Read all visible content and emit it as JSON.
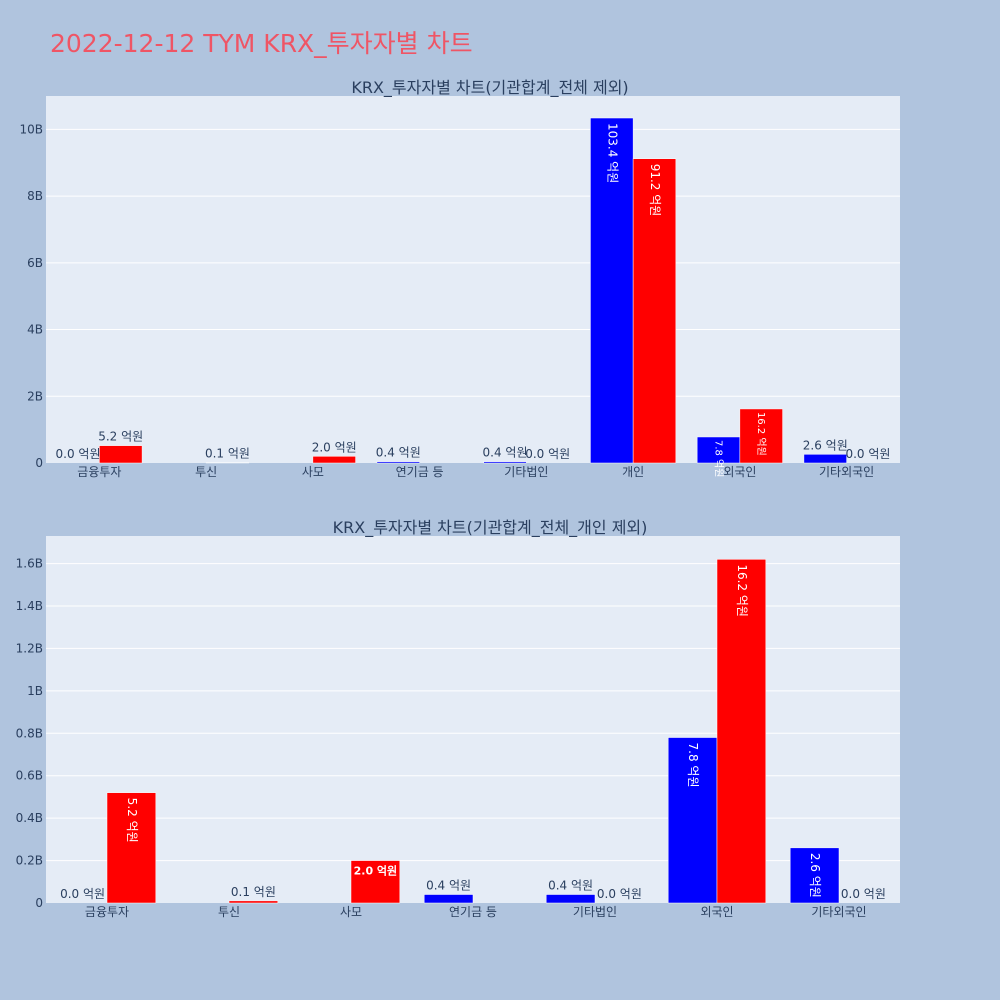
{
  "page_title": "2022-12-12 TYM KRX_투자자별 차트",
  "colors": {
    "buy": "#0000ff",
    "sell": "#ff0000",
    "title": "#ef5565",
    "background": "#b0c4de",
    "plot_bg": "#e5ecf6"
  },
  "chart_data": [
    {
      "type": "bar",
      "title": "KRX_투자자별 차트(기관합계_전체 제외)",
      "categories": [
        "금융투자",
        "투신",
        "사모",
        "연기금 등",
        "기타법인",
        "개인",
        "외국인",
        "기타외국인"
      ],
      "series": [
        {
          "color": "#0000ff",
          "values": [
            0,
            null,
            null,
            40000000,
            40000000,
            10340000000,
            780000000,
            260000000
          ],
          "labels": [
            "0.0 억원",
            "",
            "",
            "0.4 억원",
            "0.4 억원",
            "103.4 억원",
            "7.8 억원",
            "2.6 억원"
          ]
        },
        {
          "color": "#ff0000",
          "values": [
            520000000,
            10000000,
            200000000,
            null,
            0,
            9120000000,
            1620000000,
            0
          ],
          "labels": [
            "5.2 억원",
            "0.1 억원",
            "2.0 억원",
            "",
            "0.0 억원",
            "91.2 억원",
            "16.2 억원",
            "0.0 억원"
          ]
        }
      ],
      "ylim": [
        0,
        11000000000
      ],
      "yticks": [
        0,
        2000000000,
        4000000000,
        6000000000,
        8000000000,
        10000000000
      ],
      "ytick_labels": [
        "0",
        "2B",
        "4B",
        "6B",
        "8B",
        "10B"
      ],
      "grid": true
    },
    {
      "type": "bar",
      "title": "KRX_투자자별 차트(기관합계_전체_개인 제외)",
      "categories": [
        "금융투자",
        "투신",
        "사모",
        "연기금 등",
        "기타법인",
        "외국인",
        "기타외국인"
      ],
      "series": [
        {
          "color": "#0000ff",
          "values": [
            0,
            null,
            null,
            40000000,
            40000000,
            780000000,
            260000000
          ],
          "labels": [
            "0.0 억원",
            "",
            "",
            "0.4 억원",
            "0.4 억원",
            "7.8 억원",
            "2.6 억원"
          ]
        },
        {
          "color": "#ff0000",
          "values": [
            520000000,
            10000000,
            200000000,
            null,
            0,
            1620000000,
            0
          ],
          "labels": [
            "5.2 억원",
            "0.1 억원",
            "2.0 억원",
            "",
            "0.0 억원",
            "16.2 억원",
            "0.0 억원"
          ]
        }
      ],
      "ylim": [
        0,
        1730000000
      ],
      "yticks": [
        0,
        200000000,
        400000000,
        600000000,
        800000000,
        1000000000,
        1200000000,
        1400000000,
        1600000000
      ],
      "ytick_labels": [
        "0",
        "0.2B",
        "0.4B",
        "0.6B",
        "0.8B",
        "1B",
        "1.2B",
        "1.4B",
        "1.6B"
      ],
      "grid": true
    }
  ]
}
